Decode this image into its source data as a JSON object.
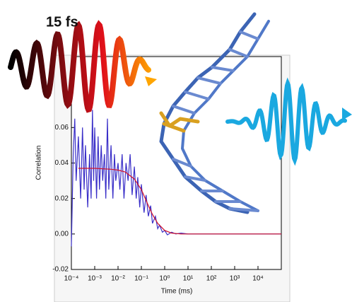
{
  "chart_data": {
    "type": "line",
    "annotation": "15 fs",
    "xlabel": "Time (ms)",
    "ylabel": "Correlation",
    "xscale": "log",
    "xlim": [
      0.0001,
      100000
    ],
    "xticks": [
      {
        "value": 0.0001,
        "label": "10⁻⁴"
      },
      {
        "value": 0.001,
        "label": "10⁻³"
      },
      {
        "value": 0.01,
        "label": "10⁻²"
      },
      {
        "value": 0.1,
        "label": "10⁻¹"
      },
      {
        "value": 1,
        "label": "10⁰"
      },
      {
        "value": 10,
        "label": "10¹"
      },
      {
        "value": 100,
        "label": "10²"
      },
      {
        "value": 1000,
        "label": "10³"
      },
      {
        "value": 10000,
        "label": "10⁴"
      }
    ],
    "ylim": [
      -0.02,
      0.1
    ],
    "yticks": [
      -0.02,
      {
        "value": 0,
        "label": "0.00"
      },
      0.02,
      0.04,
      0.06
    ],
    "series": [
      {
        "color": "#3a2fc8",
        "x": [
          0.0001,
          0.00012,
          0.00014,
          0.00016,
          0.0002,
          0.00025,
          0.0003,
          0.00035,
          0.0004,
          0.0005,
          0.0006,
          0.0007,
          0.0008,
          0.0009,
          0.001,
          0.0012,
          0.0014,
          0.0016,
          0.0019,
          0.0022,
          0.0026,
          0.003,
          0.0035,
          0.004,
          0.005,
          0.006,
          0.007,
          0.008,
          0.01,
          0.012,
          0.015,
          0.018,
          0.022,
          0.027,
          0.033,
          0.04,
          0.05,
          0.06,
          0.07,
          0.085,
          0.1,
          0.13,
          0.16,
          0.2,
          0.25,
          0.3,
          0.4,
          0.5,
          0.6,
          0.8,
          1,
          1.3,
          2,
          3,
          5,
          10,
          30,
          100,
          1000,
          10000,
          100000
        ],
        "values": [
          -0.007,
          0.045,
          0.065,
          0.03,
          0.055,
          0.02,
          0.06,
          0.025,
          0.05,
          0.015,
          0.045,
          0.02,
          0.07,
          0.03,
          0.06,
          0.02,
          0.055,
          0.025,
          0.05,
          0.03,
          0.045,
          0.02,
          0.065,
          0.025,
          0.05,
          0.02,
          0.045,
          0.03,
          0.04,
          0.025,
          0.045,
          0.02,
          0.04,
          0.03,
          0.045,
          0.022,
          0.038,
          0.02,
          0.032,
          0.015,
          0.028,
          0.012,
          0.022,
          0.01,
          0.016,
          0.006,
          0.01,
          0.003,
          0.005,
          0.001,
          0.002,
          -0.0005,
          0.001,
          0,
          0.0005,
          0,
          0,
          0,
          0,
          0,
          0
        ]
      },
      {
        "color": "#d0102a",
        "x": [
          0.0002,
          0.001,
          0.005,
          0.01,
          0.02,
          0.05,
          0.1,
          0.2,
          0.3,
          0.5,
          1,
          2,
          5,
          100000
        ],
        "values": [
          0.037,
          0.037,
          0.0365,
          0.036,
          0.035,
          0.031,
          0.025,
          0.016,
          0.011,
          0.006,
          0.002,
          0.0005,
          0,
          0
        ]
      }
    ]
  }
}
